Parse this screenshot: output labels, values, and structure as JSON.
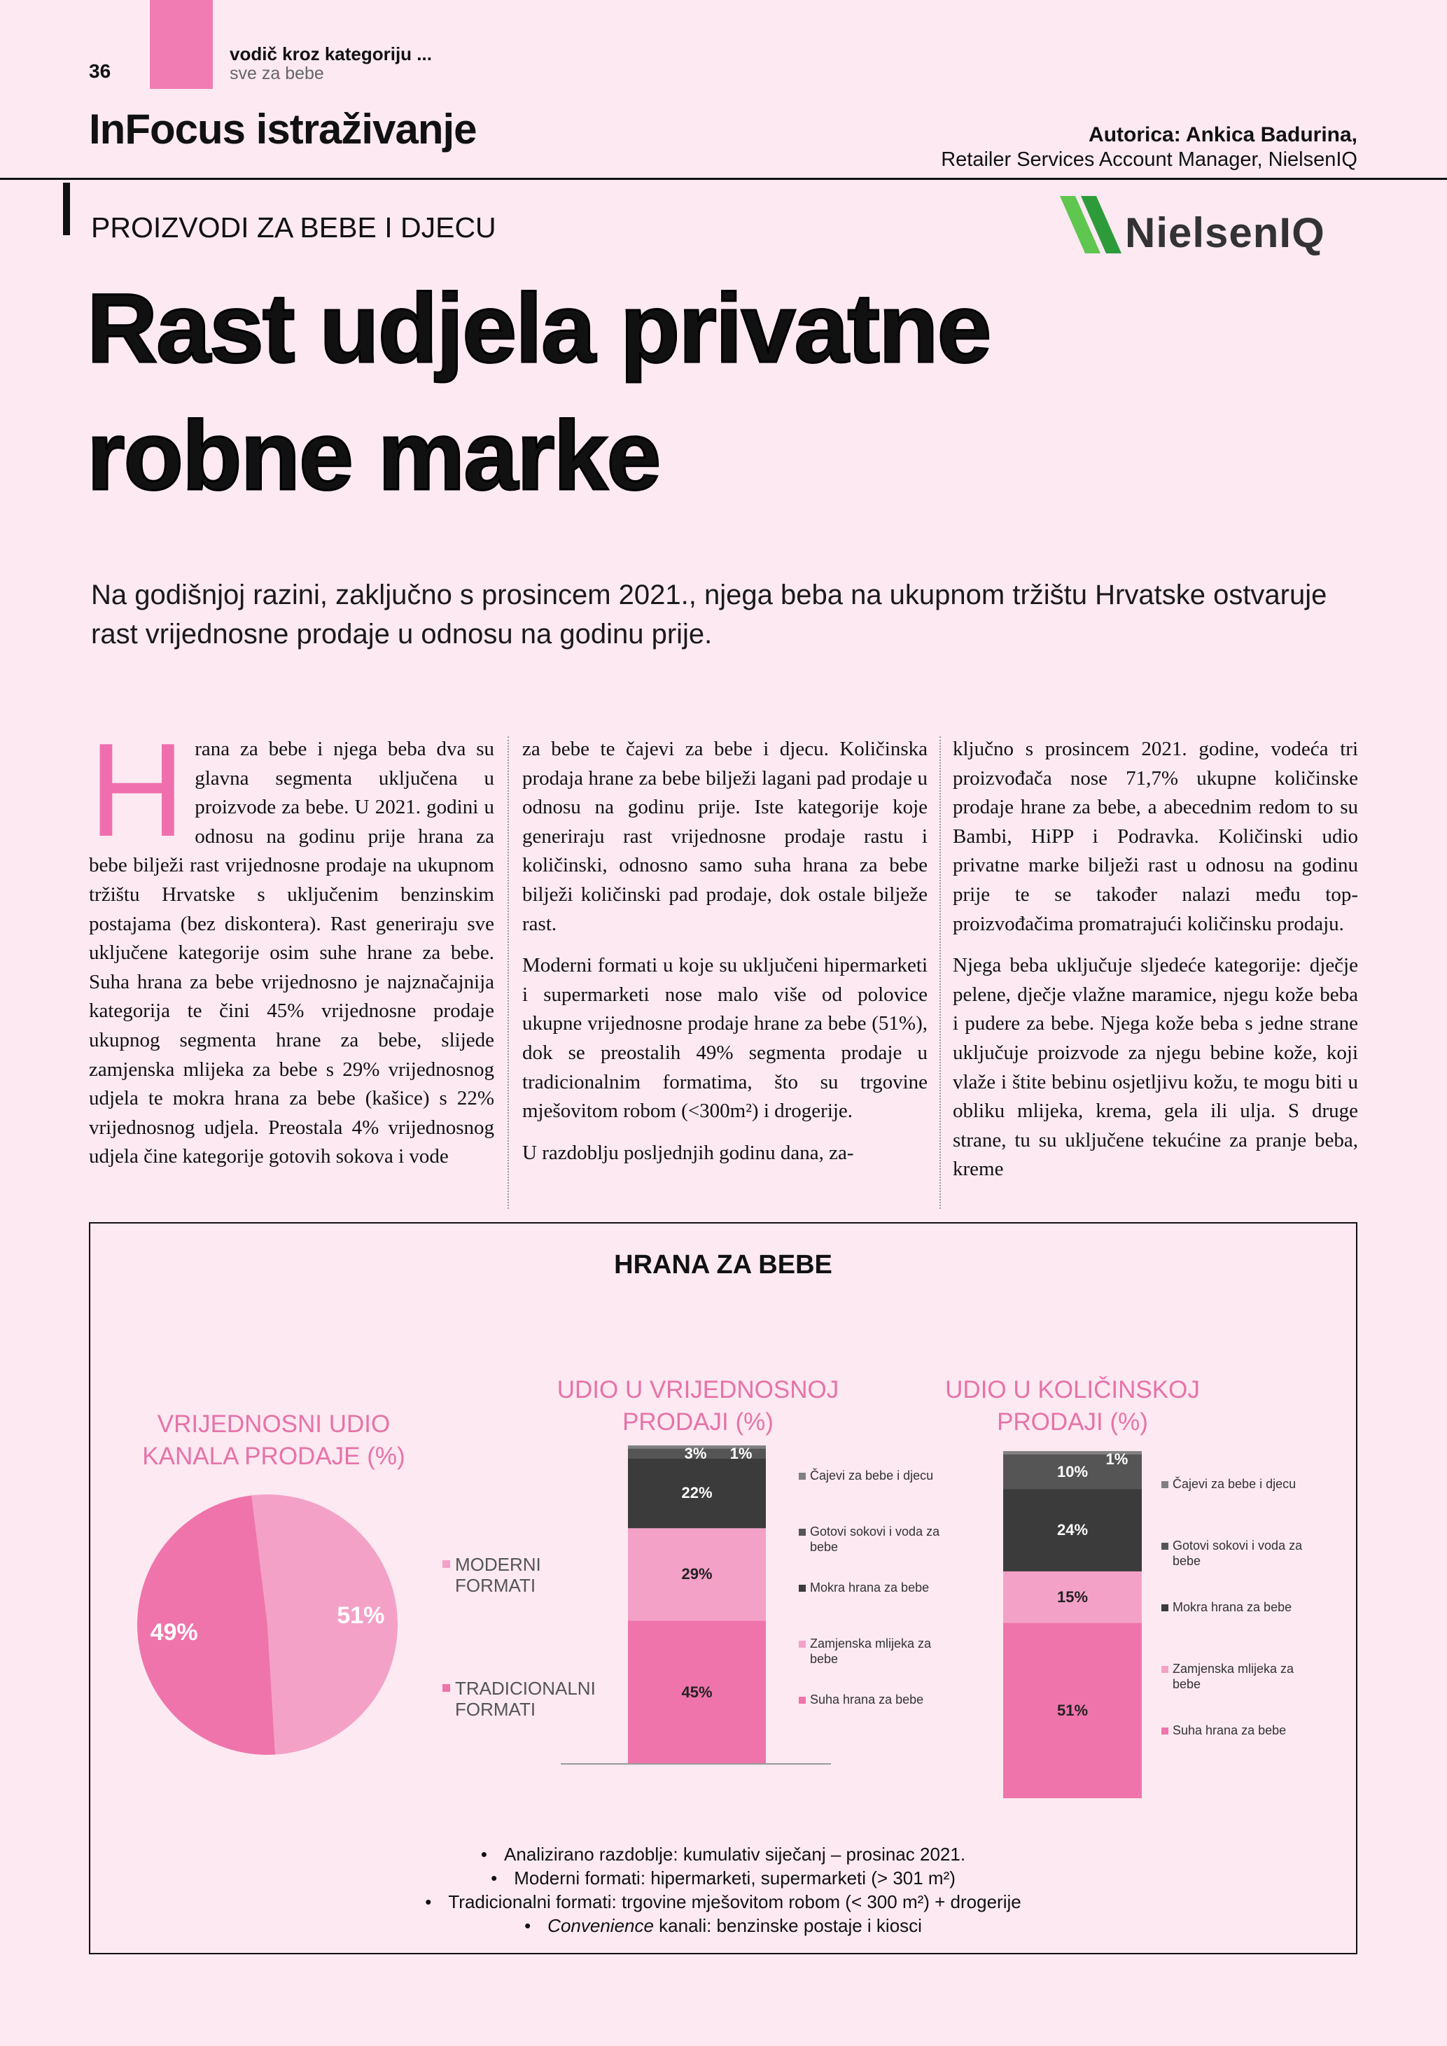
{
  "header": {
    "page_number": "36",
    "kicker": "vodič kroz kategoriju ...",
    "kicker_sub": "sve za bebe",
    "rubric": "InFocus istraživanje",
    "author": "Autorica: Ankica Badurina,",
    "author_role": "Retailer Services Account Manager, NielsenIQ",
    "section": "PROIZVODI ZA BEBE I DJECU",
    "logo": "NielsenIQ"
  },
  "headline": [
    "Rast udjela privatne",
    "robne marke"
  ],
  "lead": "Na godišnjoj razini, zaključno s prosincem 2021., njega beba na ukupnom tržištu Hrvatske ostvaruje rast vrijednosne prodaje u odnosu na godinu prije.",
  "article": {
    "drop_cap": "H",
    "columns": [
      [
        "rana za bebe i njega beba dva su glavna segmenta uključena u proizvode za bebe. U 2021. godini u odnosu na godinu prije hrana za bebe bilježi rast vrijednosne prodaje na ukupnom tržištu Hrvatske s uključenim benzinskim postajama (bez diskontera). Rast generiraju sve uključene kategorije osim suhe hrane za bebe. Suha hrana za bebe vrijednosno je najznačajnija kategorija te čini 45% vrijednosne prodaje ukupnog segmenta hrane za bebe, slijede zamjenska mlijeka za bebe s 29% vrijednosnog udjela te mokra hrana za bebe (kašice) s 22% vrijednosnog udjela. Preostala 4% vrijednosnog udjela čine kategorije gotovih sokova i vode"
      ],
      [
        "za bebe te čajevi za bebe i djecu. Količinska prodaja hrane za bebe bilježi lagani pad prodaje u odnosu na godinu prije. Iste kategorije koje generiraju rast vrijednosne prodaje rastu i količinski, odnosno samo suha hrana za bebe bilježi količinski pad prodaje, dok ostale bilježe rast.",
        "Moderni formati u koje su uključeni hipermarketi i supermarketi nose malo više od polovice ukupne vrijednosne prodaje hrane za bebe (51%), dok se preostalih 49% segmenta prodaje u tradicionalnim formatima, što su trgovine mješovitom robom (<300m²) i drogerije.",
        "U razdoblju posljednjih godinu dana, za-"
      ],
      [
        "ključno s prosincem 2021. godine, vodeća tri proizvođača nose 71,7% ukupne količinske prodaje hrane za bebe, a abecednim redom to su Bambi, HiPP i Podravka. Količinski udio privatne marke bilježi rast u odnosu na godinu prije te se također nalazi među top-proizvođačima promatrajući količinsku prodaju.",
        "Njega beba uključuje sljedeće kategorije: dječje pelene, dječje vlažne maramice, njegu kože beba i pudere za bebe. Njega kože beba s jedne strane uključuje proizvode za njegu bebine kože, koji vlaže i štite bebinu osjetljivu kožu, te mogu biti u obliku mlijeka, krema, gela ili ulja. S druge strane, tu su uključene tekućine za pranje beba, kreme"
      ]
    ]
  },
  "figure": {
    "title": "HRANA ZA BEBE",
    "notes": [
      {
        "text": "Analizirano razdoblje: kumulativ siječanj – prosinac 2021."
      },
      {
        "text": "Moderni formati: hipermarketi, supermarketi (> 301 m²)"
      },
      {
        "text": "Tradicionalni formati: trgovine mješovitom robom (< 300 m²) + drogerije"
      },
      {
        "em": "Convenience",
        "text": " kanali: benzinske postaje i kiosci"
      }
    ]
  },
  "chart_data": [
    {
      "type": "pie",
      "title": "VRIJEDNOSNI UDIO KANALA PRODAJE (%)",
      "categories": [
        "MODERNI FORMATI",
        "TRADICIONALNI FORMATI"
      ],
      "values": [
        51,
        49
      ],
      "value_labels": [
        "51%",
        "49%"
      ],
      "colors": [
        "#f4a1c7",
        "#ef74ab"
      ]
    },
    {
      "type": "stacked_bar",
      "title": "UDIO U VRIJEDNOSNOJ PRODAJI (%)",
      "series": [
        {
          "name": "Suha hrana za bebe",
          "color": "#ef74ab",
          "values": [
            45
          ],
          "value_labels": [
            "45%"
          ]
        },
        {
          "name": "Zamjenska mlijeka za bebe",
          "color": "#f4a1c7",
          "values": [
            29
          ],
          "value_labels": [
            "29%"
          ]
        },
        {
          "name": "Mokra hrana za bebe",
          "color": "#3b3b3b",
          "values": [
            22
          ],
          "value_labels": [
            "22%"
          ]
        },
        {
          "name": "Gotovi sokovi i voda za bebe",
          "color": "#555555",
          "values": [
            3
          ],
          "value_labels": [
            "3%"
          ]
        },
        {
          "name": "Čajevi za bebe i djecu",
          "color": "#808080",
          "values": [
            1
          ],
          "value_labels": [
            "1%"
          ]
        }
      ]
    },
    {
      "type": "stacked_bar",
      "title": "UDIO U KOLIČINSKOJ PRODAJI (%)",
      "series": [
        {
          "name": "Suha hrana za bebe",
          "color": "#ef74ab",
          "values": [
            51
          ],
          "value_labels": [
            "51%"
          ]
        },
        {
          "name": "Zamjenska mlijeka za bebe",
          "color": "#f4a1c7",
          "values": [
            15
          ],
          "value_labels": [
            "15%"
          ]
        },
        {
          "name": "Mokra hrana za bebe",
          "color": "#3b3b3b",
          "values": [
            24
          ],
          "value_labels": [
            "24%"
          ]
        },
        {
          "name": "Gotovi sokovi i voda za bebe",
          "color": "#555555",
          "values": [
            10
          ],
          "value_labels": [
            "10%"
          ]
        },
        {
          "name": "Čajevi za bebe i djecu",
          "color": "#808080",
          "values": [
            1
          ],
          "value_labels": [
            "1%"
          ]
        }
      ]
    }
  ]
}
